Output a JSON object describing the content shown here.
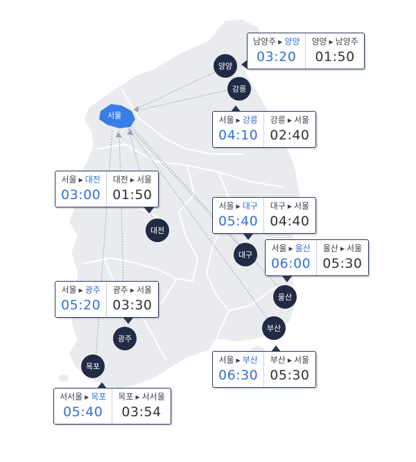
{
  "origin": "서울",
  "cities": [
    {
      "key": "yangyang",
      "label": "양양"
    },
    {
      "key": "gangneung",
      "label": "강릉"
    },
    {
      "key": "daejeon",
      "label": "대전"
    },
    {
      "key": "daegu",
      "label": "대구"
    },
    {
      "key": "ulsan",
      "label": "울산"
    },
    {
      "key": "busan",
      "label": "부산"
    },
    {
      "key": "gwangju",
      "label": "광주"
    },
    {
      "key": "mokpo",
      "label": "목포"
    }
  ],
  "cards": [
    {
      "key": "yangyang",
      "out_from": "남양주",
      "out_to": "양양",
      "out_time": "03:20",
      "in_from": "양양",
      "in_to": "남양주",
      "in_time": "01:50"
    },
    {
      "key": "gangneung",
      "out_from": "서울",
      "out_to": "강릉",
      "out_time": "04:10",
      "in_from": "강릉",
      "in_to": "서울",
      "in_time": "02:40"
    },
    {
      "key": "daejeon",
      "out_from": "서울",
      "out_to": "대전",
      "out_time": "03:00",
      "in_from": "대전",
      "in_to": "서울",
      "in_time": "01:50"
    },
    {
      "key": "daegu",
      "out_from": "서울",
      "out_to": "대구",
      "out_time": "05:40",
      "in_from": "대구",
      "in_to": "서울",
      "in_time": "04:40"
    },
    {
      "key": "ulsan",
      "out_from": "서울",
      "out_to": "울산",
      "out_time": "06:00",
      "in_from": "울산",
      "in_to": "서울",
      "in_time": "05:30"
    },
    {
      "key": "gwangju",
      "out_from": "서울",
      "out_to": "광주",
      "out_time": "05:20",
      "in_from": "광주",
      "in_to": "서울",
      "in_time": "03:30"
    },
    {
      "key": "busan",
      "out_from": "서울",
      "out_to": "부산",
      "out_time": "06:30",
      "in_from": "부산",
      "in_to": "서울",
      "in_time": "05:30"
    },
    {
      "key": "mokpo",
      "out_from": "서서울",
      "out_to": "목포",
      "out_time": "05:40",
      "in_from": "목포",
      "in_to": "서서울",
      "in_time": "03:54"
    }
  ],
  "colors": {
    "land": "#e9ebef",
    "border": "#ffffff",
    "marker": "#222b45",
    "origin": "#3a7de6",
    "highlight": "#2f6fd6",
    "route_line": "#9aa3b2"
  }
}
